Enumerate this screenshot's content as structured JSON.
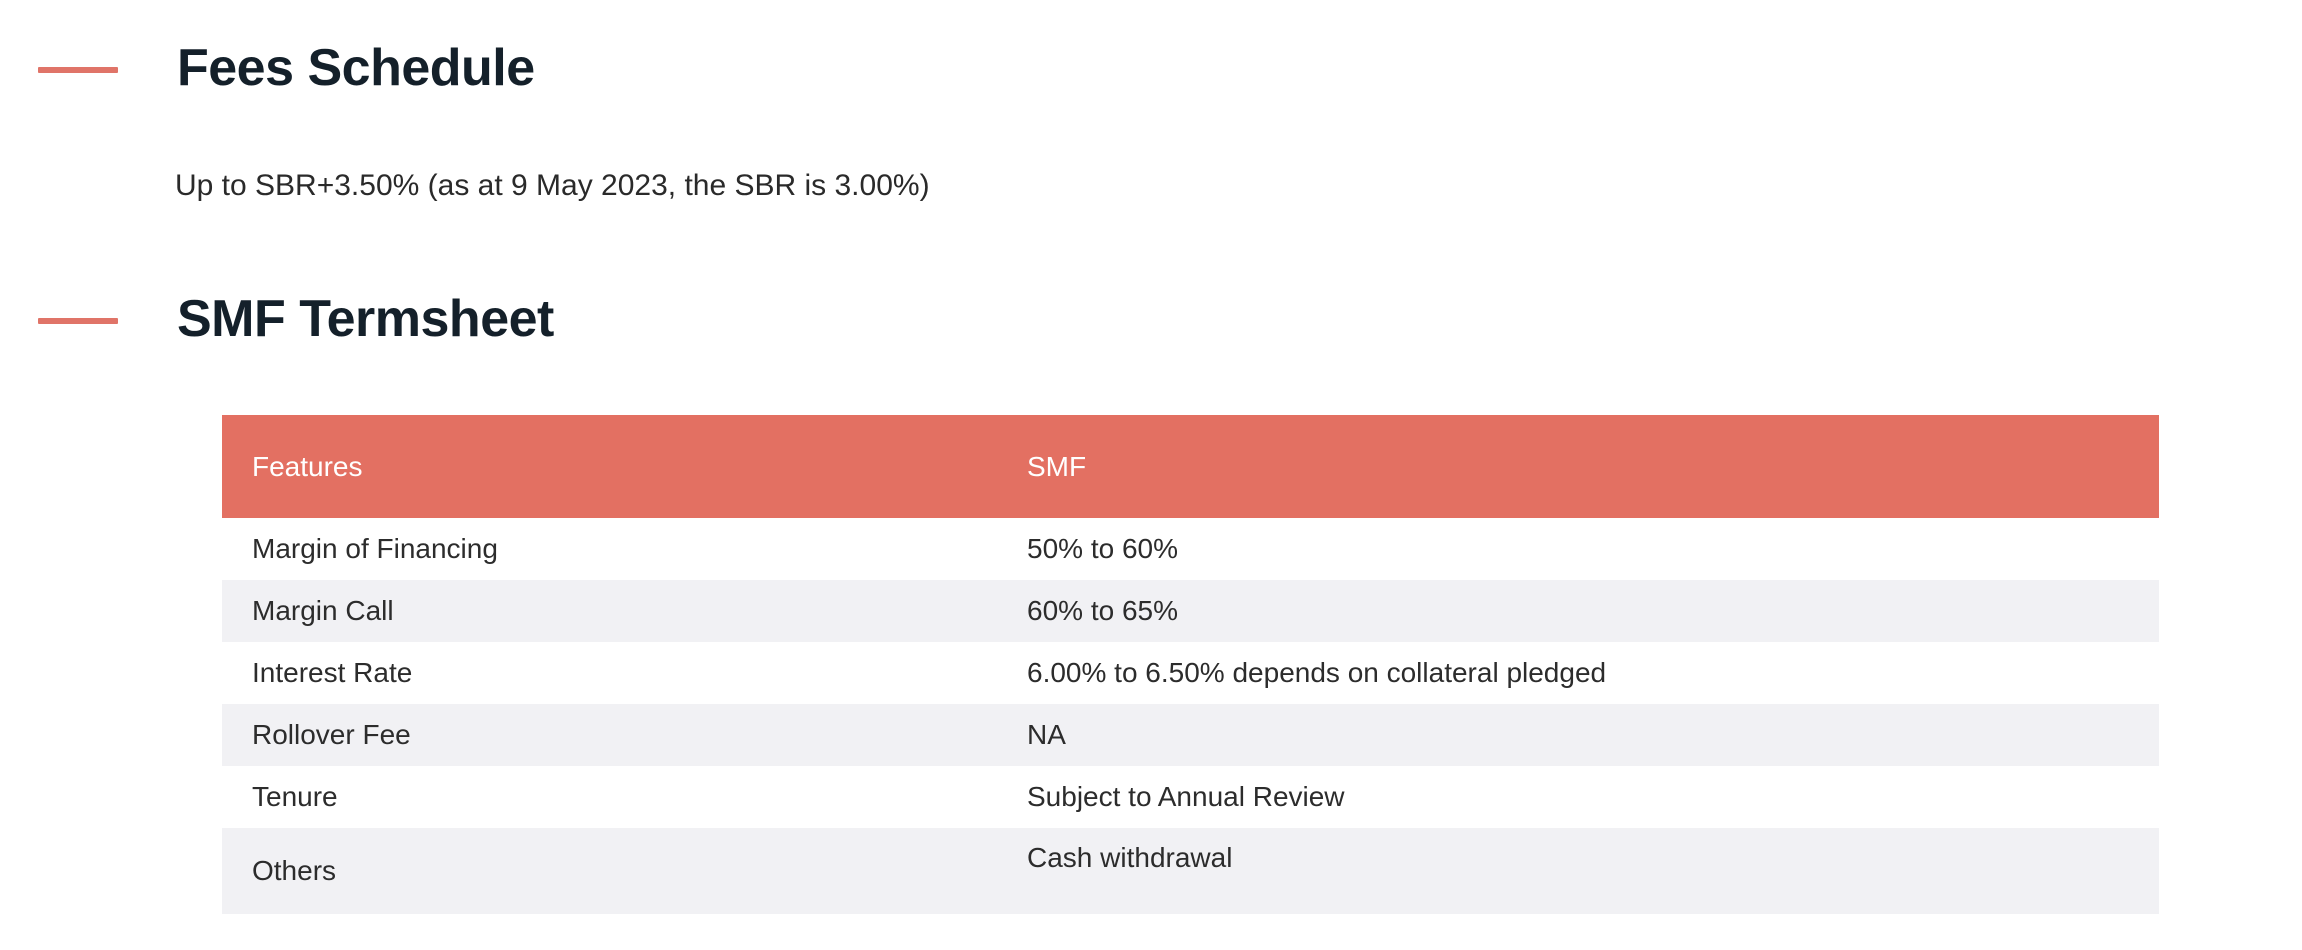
{
  "fees_section": {
    "title": "Fees Schedule",
    "text": "Up to SBR+3.50% (as at 9 May 2023, the SBR is 3.00%)"
  },
  "termsheet_section": {
    "title": "SMF Termsheet",
    "table": {
      "headers": [
        "Features",
        "SMF"
      ],
      "rows": [
        [
          "Margin of Financing",
          "50% to 60%"
        ],
        [
          "Margin Call",
          "60% to 65%"
        ],
        [
          "Interest Rate",
          "6.00% to 6.50% depends on collateral pledged"
        ],
        [
          "Rollover Fee",
          "NA"
        ],
        [
          "Tenure",
          "Subject to Annual Review"
        ],
        [
          "Others",
          "Cash withdrawal"
        ]
      ]
    }
  },
  "colors": {
    "accent": "#e07468",
    "header_bg": "#e37062",
    "stripe_bg": "#f1f1f4",
    "title_text": "#14202a"
  }
}
